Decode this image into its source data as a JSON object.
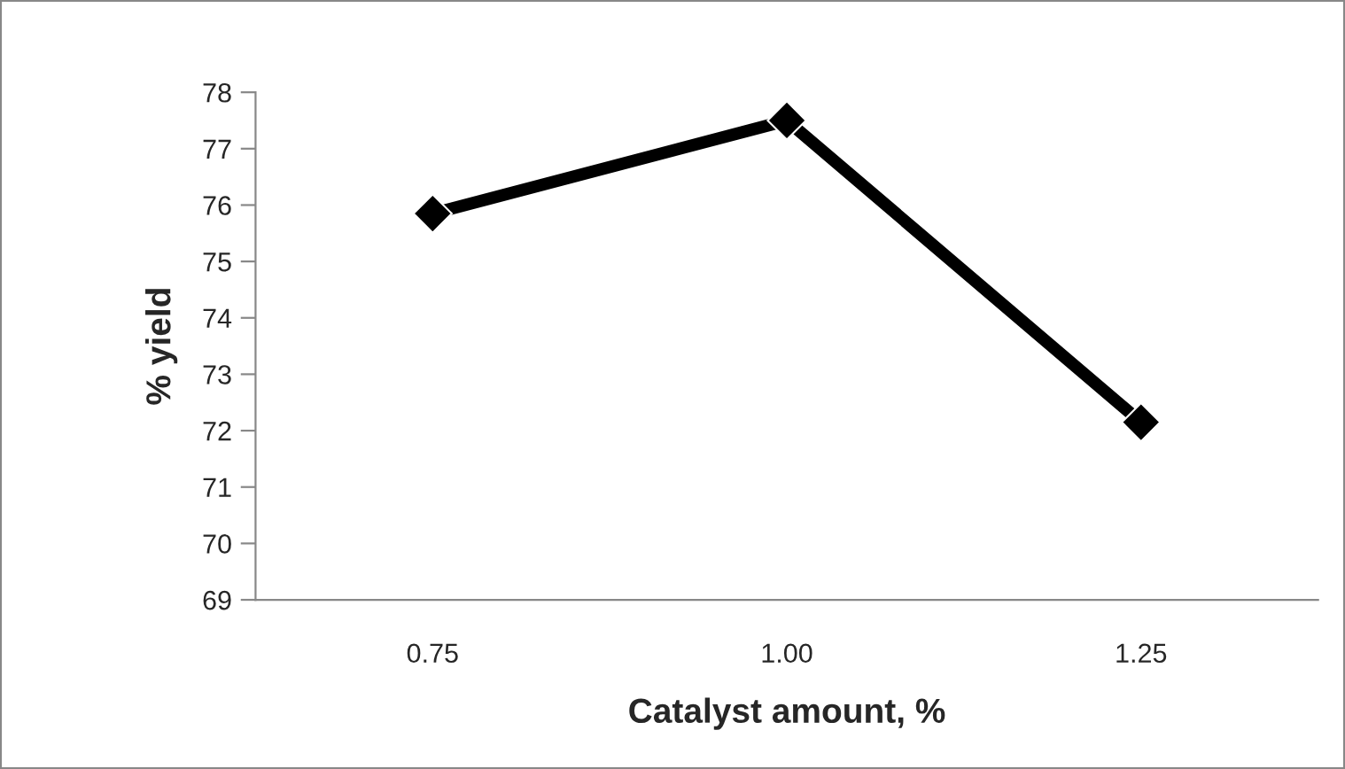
{
  "chart_data": {
    "type": "line",
    "xlabel": "Catalyst amount, %",
    "ylabel": "% yield",
    "categories": [
      "0.75",
      "1.00",
      "1.25"
    ],
    "series": [
      {
        "color": "#000000",
        "values": [
          75.85,
          77.5,
          72.15
        ]
      }
    ],
    "ylim": [
      69,
      78
    ],
    "yticks": [
      69,
      70,
      71,
      72,
      73,
      74,
      75,
      76,
      77,
      78
    ],
    "marker": "diamond",
    "line_style": "solid",
    "grid": false,
    "legend": false
  }
}
